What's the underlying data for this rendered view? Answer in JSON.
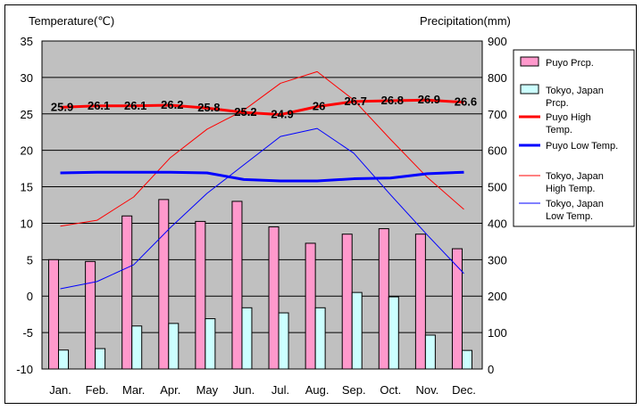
{
  "chart_data": {
    "type": "bar",
    "categories": [
      "Jan.",
      "Feb.",
      "Mar.",
      "Apr.",
      "May",
      "Jun.",
      "Jul.",
      "Aug.",
      "Sep.",
      "Oct.",
      "Nov.",
      "Dec."
    ],
    "left_axis": {
      "title": "Temperature(℃)",
      "ylim": [
        -10,
        35
      ],
      "ticks": [
        35,
        30,
        25,
        20,
        15,
        10,
        5,
        0,
        -5,
        -10
      ]
    },
    "right_axis": {
      "title": "Precipitation(mm)",
      "ylim": [
        0,
        900
      ],
      "ticks": [
        900,
        800,
        700,
        600,
        500,
        400,
        300,
        200,
        100,
        0
      ]
    },
    "grid": true,
    "legend_position": "right",
    "series": [
      {
        "name": "Puyo Prcp.",
        "kind": "bar",
        "axis": "right",
        "color": "#ff99cc",
        "values": [
          300,
          295,
          420,
          465,
          405,
          460,
          390,
          345,
          370,
          385,
          370,
          330
        ]
      },
      {
        "name": "Tokyo, Japan Prcp.",
        "kind": "bar",
        "axis": "right",
        "color": "#ccffff",
        "values": [
          52,
          56,
          118,
          125,
          138,
          168,
          154,
          168,
          210,
          198,
          93,
          51
        ]
      },
      {
        "name": "Puyo High Temp.",
        "kind": "line",
        "axis": "left",
        "color": "#ff0000",
        "width": 3,
        "values": [
          25.9,
          26.1,
          26.1,
          26.2,
          25.8,
          25.2,
          24.9,
          26,
          26.7,
          26.8,
          26.9,
          26.6
        ],
        "labels": [
          "25.9",
          "26.1",
          "26.1",
          "26.2",
          "25.8",
          "25.2",
          "24.9",
          "26",
          "26.7",
          "26.8",
          "26.9",
          "26.6"
        ]
      },
      {
        "name": "Puyo Low Temp.",
        "kind": "line",
        "axis": "left",
        "color": "#0000ff",
        "width": 3,
        "values": [
          16.9,
          17,
          17,
          17,
          16.9,
          16,
          15.8,
          15.8,
          16.1,
          16.2,
          16.8,
          17
        ]
      },
      {
        "name": "Tokyo, Japan High Temp.",
        "kind": "line",
        "axis": "left",
        "color": "#ff0000",
        "width": 1,
        "values": [
          9.6,
          10.4,
          13.6,
          19,
          22.9,
          25.5,
          29.2,
          30.8,
          26.9,
          21.5,
          16.3,
          11.9
        ]
      },
      {
        "name": "Tokyo, Japan Low Temp.",
        "kind": "line",
        "axis": "left",
        "color": "#0000ff",
        "width": 1,
        "values": [
          1,
          2,
          4.3,
          9.4,
          14.1,
          18,
          21.9,
          23,
          19.6,
          13.9,
          8.4,
          3.1
        ]
      }
    ],
    "legend": [
      {
        "lines": [
          "Puyo Prcp."
        ],
        "marker": "bar",
        "color": "#ff99cc"
      },
      {
        "lines": [
          "Tokyo, Japan",
          "Prcp."
        ],
        "marker": "bar",
        "color": "#ccffff"
      },
      {
        "lines": [
          "Puyo High",
          "Temp."
        ],
        "marker": "thick-line",
        "color": "#ff0000"
      },
      {
        "lines": [
          "Puyo Low Temp."
        ],
        "marker": "thick-line",
        "color": "#0000ff"
      },
      {
        "lines": [
          "Tokyo, Japan",
          "High Temp."
        ],
        "marker": "thin-line",
        "color": "#ff0000"
      },
      {
        "lines": [
          "Tokyo, Japan",
          "Low Temp."
        ],
        "marker": "thin-line",
        "color": "#0000ff"
      }
    ]
  }
}
